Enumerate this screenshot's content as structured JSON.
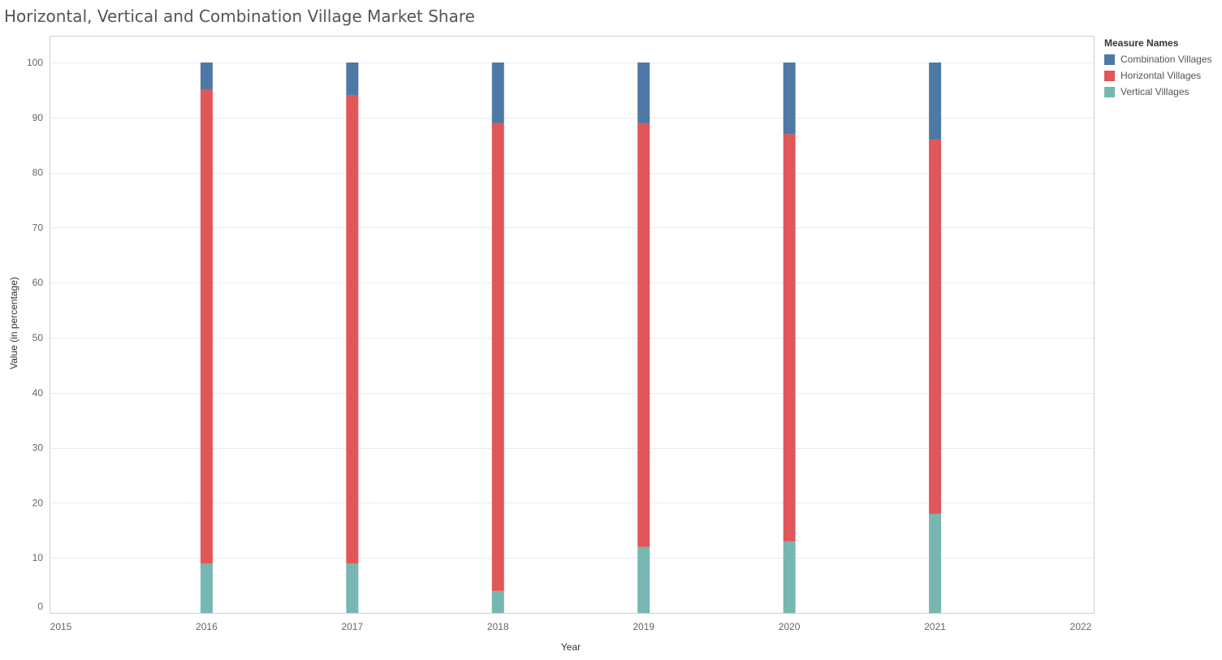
{
  "title": "Horizontal, Vertical and Combination Village Market Share",
  "chart_data": {
    "type": "bar",
    "stacked": true,
    "title": "Horizontal, Vertical and Combination Village Market Share",
    "xlabel": "Year",
    "ylabel": "Value (in percentage)",
    "xlim": [
      2015,
      2022
    ],
    "x_ticks": [
      "2015",
      "2016",
      "2017",
      "2018",
      "2019",
      "2020",
      "2021",
      "2022"
    ],
    "ylim": [
      0,
      100
    ],
    "y_ticks": [
      "0",
      "10",
      "20",
      "30",
      "40",
      "50",
      "60",
      "70",
      "80",
      "90",
      "100"
    ],
    "grid": true,
    "categories": [
      "2016",
      "2017",
      "2018",
      "2019",
      "2020",
      "2021"
    ],
    "series": [
      {
        "name": "Vertical Villages",
        "color": "#76b7b2",
        "values": [
          9,
          9,
          4,
          12,
          13,
          18
        ]
      },
      {
        "name": "Horizontal Villages",
        "color": "#e15759",
        "values": [
          86,
          85,
          85,
          77,
          74,
          68
        ]
      },
      {
        "name": "Combination Villages",
        "color": "#4e79a7",
        "values": [
          5,
          6,
          11,
          11,
          13,
          14
        ]
      }
    ],
    "legend": {
      "title": "Measure Names",
      "position": "right",
      "items": [
        {
          "label": "Combination Villages",
          "color": "#4e79a7"
        },
        {
          "label": "Horizontal Villages",
          "color": "#e15759"
        },
        {
          "label": "Vertical Villages",
          "color": "#76b7b2"
        }
      ]
    }
  }
}
